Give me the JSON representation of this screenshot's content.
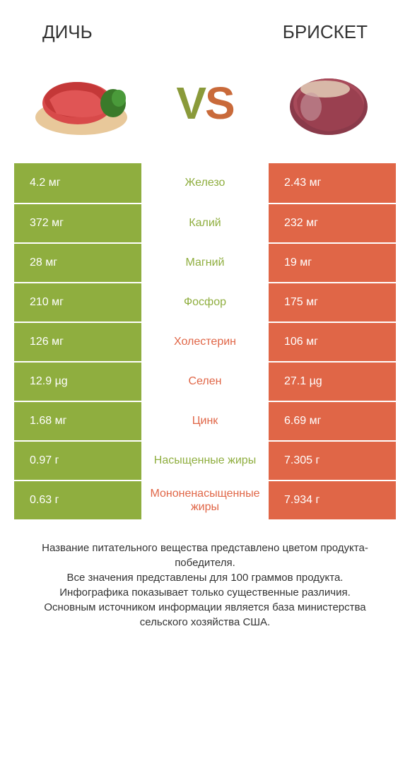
{
  "header": {
    "left_title": "ДИЧЬ",
    "right_title": "БРИСКЕТ"
  },
  "vs": {
    "v": "V",
    "s": "S"
  },
  "colors": {
    "green": "#8fae3f",
    "orange": "#e06647",
    "green_text": "#8fae3f",
    "orange_text": "#e06647"
  },
  "rows": [
    {
      "left": "4.2 мг",
      "label": "Железо",
      "right": "2.43 мг",
      "winner": "left"
    },
    {
      "left": "372 мг",
      "label": "Калий",
      "right": "232 мг",
      "winner": "left"
    },
    {
      "left": "28 мг",
      "label": "Магний",
      "right": "19 мг",
      "winner": "left"
    },
    {
      "left": "210 мг",
      "label": "Фосфор",
      "right": "175 мг",
      "winner": "left"
    },
    {
      "left": "126 мг",
      "label": "Холестерин",
      "right": "106 мг",
      "winner": "right"
    },
    {
      "left": "12.9 µg",
      "label": "Селен",
      "right": "27.1 µg",
      "winner": "right"
    },
    {
      "left": "1.68 мг",
      "label": "Цинк",
      "right": "6.69 мг",
      "winner": "right"
    },
    {
      "left": "0.97 г",
      "label": "Насыщенные жиры",
      "right": "7.305 г",
      "winner": "left"
    },
    {
      "left": "0.63 г",
      "label": "Мононенасыщенные жиры",
      "right": "7.934 г",
      "winner": "right"
    }
  ],
  "footer": {
    "line1": "Название питательного вещества представлено цветом продукта-победителя.",
    "line2": "Все значения представлены для 100 граммов продукта.",
    "line3": "Инфографика показывает только существенные различия.",
    "line4": "Основным источником информации является база министерства сельского хозяйства США."
  }
}
